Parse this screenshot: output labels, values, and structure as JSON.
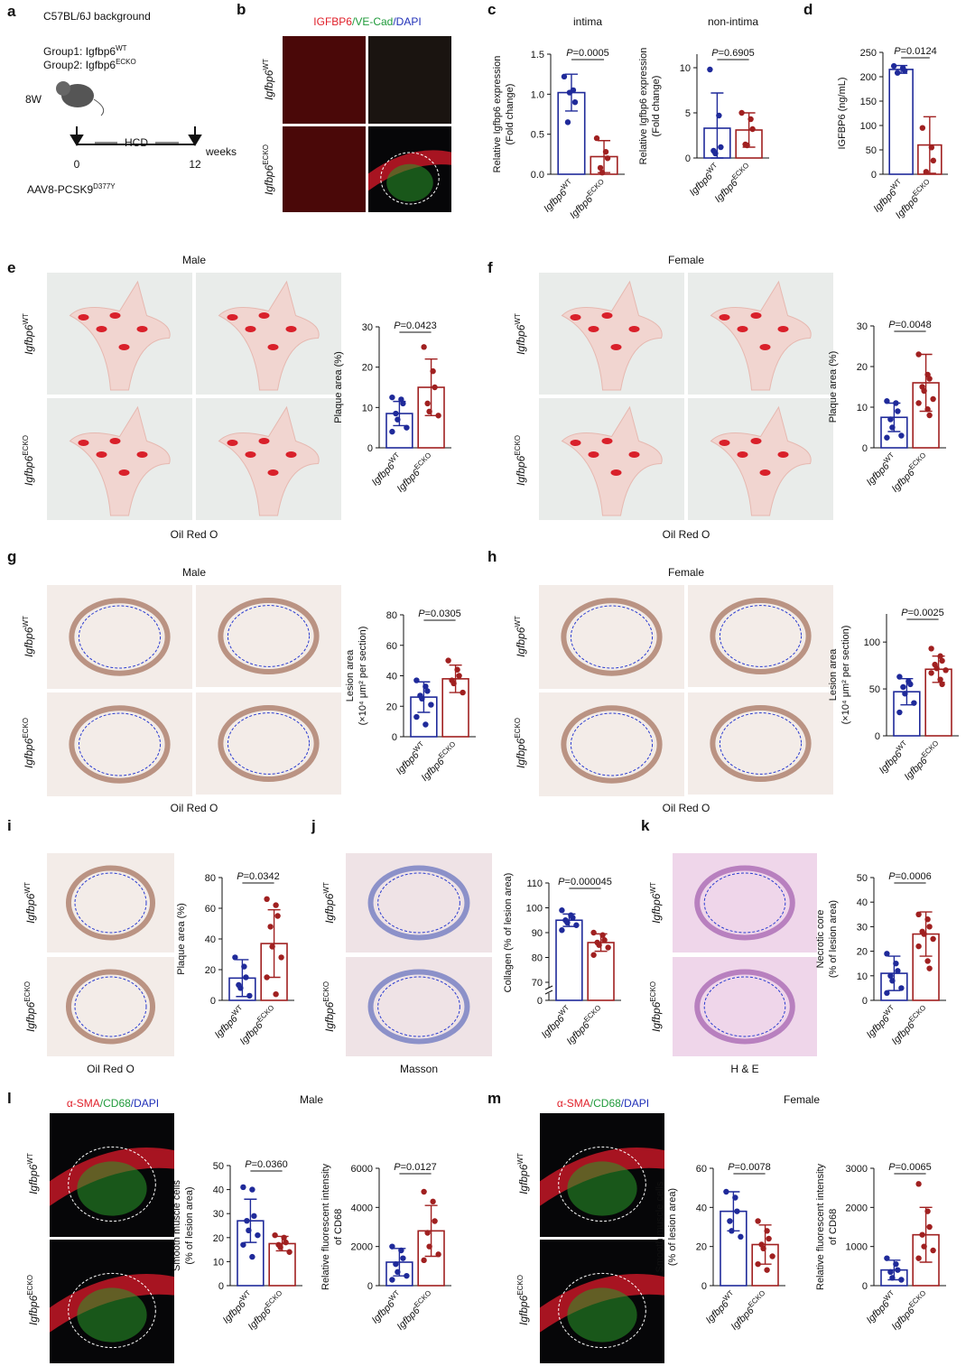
{
  "figure": {
    "panel_letters": [
      "a",
      "b",
      "c",
      "d",
      "e",
      "f",
      "g",
      "h",
      "i",
      "j",
      "k",
      "l",
      "m"
    ],
    "a": {
      "background": "C57BL/6J background",
      "group1": {
        "text": "Group1: Igfbp6",
        "sup": "WT"
      },
      "group2": {
        "text": "Group2: Igfbp6",
        "sup": "ECKO"
      },
      "age": "8W",
      "diet": "HCD",
      "start": "0",
      "end": "12",
      "unit": "weeks",
      "virus": {
        "text": "AAV8-PCSK9",
        "sup": "D377Y"
      }
    },
    "b": {
      "stain": [
        {
          "text": "IGFBP6",
          "color": "#e0202a"
        },
        {
          "text": "/VE-Cad",
          "color": "#1f9a3a"
        },
        {
          "text": "/DAPI",
          "color": "#2030b8"
        }
      ],
      "rows": [
        "Igfbp6WT",
        "Igfbp6ECKO"
      ]
    },
    "e": {
      "title": "Male",
      "rows": [
        "Igfbp6WT",
        "Igfbp6ECKO"
      ],
      "caption": "Oil Red O"
    },
    "f": {
      "title": "Female",
      "rows": [
        "Igfbp6WT",
        "Igfbp6ECKO"
      ],
      "caption": "Oil Red O"
    },
    "g": {
      "title": "Male",
      "rows": [
        "Igfbp6WT",
        "Igfbp6ECKO"
      ],
      "caption": "Oil Red O"
    },
    "h": {
      "title": "Female",
      "rows": [
        "Igfbp6WT",
        "Igfbp6ECKO"
      ],
      "caption": "Oil Red O"
    },
    "i": {
      "rows": [
        "Igfbp6WT",
        "Igfbp6ECKO"
      ],
      "caption": "Oil Red O"
    },
    "j": {
      "rows": [
        "Igfbp6WT",
        "Igfbp6ECKO"
      ],
      "caption": "Masson"
    },
    "k": {
      "rows": [
        "Igfbp6WT",
        "Igfbp6ECKO"
      ],
      "caption": "H & E"
    },
    "l": {
      "title": "Male",
      "stain": [
        {
          "text": "α-SMA",
          "color": "#e0202a"
        },
        {
          "text": "/CD68",
          "color": "#1f9a3a"
        },
        {
          "text": "/DAPI",
          "color": "#2030b8"
        }
      ],
      "rows": [
        "Igfbp6WT",
        "Igfbp6ECKO"
      ]
    },
    "m": {
      "title": "Female",
      "stain": [
        {
          "text": "α-SMA",
          "color": "#e0202a"
        },
        {
          "text": "/CD68",
          "color": "#1f9a3a"
        },
        {
          "text": "/DAPI",
          "color": "#2030b8"
        }
      ],
      "rows": [
        "Igfbp6WT",
        "Igfbp6ECKO"
      ]
    }
  },
  "chart_data": [
    {
      "type": "bar",
      "title": "intima",
      "ylabel": [
        "Relative Igfbp6 expression",
        "(Fold change)"
      ],
      "categories": [
        "Igfbp6WT",
        "Igfbp6ECKO"
      ],
      "colors": [
        "#1f2a9a",
        "#a02020"
      ],
      "values": [
        1.02,
        0.22
      ],
      "errors": [
        0.23,
        0.2
      ],
      "points": [
        [
          1.22,
          1.05,
          0.9,
          0.65,
          1.02
        ],
        [
          0.45,
          0.28,
          0.2,
          0.08,
          0.02
        ]
      ],
      "pvalue": "P=0.0005",
      "ylim": [
        0,
        1.5
      ],
      "yticks": [
        {
          "value": 0,
          "label": "0.0"
        },
        {
          "value": 0.5,
          "label": "0.5"
        },
        {
          "value": 1,
          "label": "1.0"
        },
        {
          "value": 1.5,
          "label": "1.5"
        }
      ]
    },
    {
      "type": "bar",
      "title": "non-intima",
      "ylabel": [
        "Relative Igfbp6 expression",
        "(Fold change)"
      ],
      "categories": [
        "Igfbp6WT",
        "Igfbp6ECKO"
      ],
      "colors": [
        "#1f2a9a",
        "#a02020"
      ],
      "values": [
        3.3,
        3.1
      ],
      "errors": [
        3.9,
        1.9
      ],
      "points": [
        [
          9.8,
          4.7,
          1.2,
          0.8,
          0.5
        ],
        [
          5,
          4.3,
          3.2,
          1.5,
          1.4
        ]
      ],
      "pvalue": "P=0.6905",
      "ylim": [
        0,
        11.5
      ],
      "yticks": [
        0,
        5,
        10
      ]
    },
    {
      "type": "bar",
      "ylabel": [
        "IGFBP6 (ng/mL)"
      ],
      "categories": [
        "Igfbp6WT",
        "Igfbp6ECKO"
      ],
      "colors": [
        "#1f2a9a",
        "#a02020"
      ],
      "values": [
        215,
        60
      ],
      "errors": [
        8,
        58
      ],
      "points": [
        [
          222,
          218,
          212,
          208
        ],
        [
          95,
          55,
          28,
          5
        ]
      ],
      "pvalue": "P=0.0124",
      "ylim": [
        0,
        250
      ],
      "yticks": [
        0,
        50,
        100,
        150,
        200,
        250
      ]
    },
    {
      "type": "bar",
      "ylabel": [
        "Plaque area (%)"
      ],
      "categories": [
        "Igfbp6WT",
        "Igfbp6ECKO"
      ],
      "colors": [
        "#1f2a9a",
        "#a02020"
      ],
      "values": [
        8.5,
        15
      ],
      "errors": [
        3,
        7
      ],
      "points": [
        [
          12.5,
          12,
          11,
          8.5,
          7,
          5,
          4
        ],
        [
          25,
          19,
          15,
          11,
          9,
          8
        ]
      ],
      "pvalue": "P=0.0423",
      "ylim": [
        0,
        30
      ],
      "yticks": [
        0,
        10,
        20,
        30
      ]
    },
    {
      "type": "bar",
      "ylabel": [
        "Plaque area (%)"
      ],
      "categories": [
        "Igfbp6WT",
        "Igfbp6ECKO"
      ],
      "colors": [
        "#1f2a9a",
        "#a02020"
      ],
      "values": [
        7.5,
        16
      ],
      "errors": [
        3.5,
        7
      ],
      "points": [
        [
          11.5,
          11,
          9,
          7,
          5,
          3,
          2.5
        ],
        [
          23,
          18,
          17,
          15,
          14,
          12,
          11,
          9.5,
          8
        ]
      ],
      "pvalue": "P=0.0048",
      "ylim": [
        0,
        30
      ],
      "yticks": [
        0,
        10,
        20,
        30
      ]
    },
    {
      "type": "bar",
      "ylabel": [
        "Lesion area",
        "(×10⁴ μm² per section)"
      ],
      "categories": [
        "Igfbp6WT",
        "Igfbp6ECKO"
      ],
      "colors": [
        "#1f2a9a",
        "#a02020"
      ],
      "values": [
        26,
        38
      ],
      "errors": [
        10,
        9
      ],
      "points": [
        [
          37,
          33,
          30,
          27,
          25,
          21,
          13,
          8
        ],
        [
          50,
          44,
          40,
          37,
          35,
          29
        ]
      ],
      "pvalue": "P=0.0305",
      "ylim": [
        0,
        80
      ],
      "yticks": [
        0,
        20,
        40,
        60,
        80
      ]
    },
    {
      "type": "bar",
      "ylabel": [
        "Lesion area",
        "(×10⁴ μm² per section)"
      ],
      "categories": [
        "Igfbp6WT",
        "Igfbp6ECKO"
      ],
      "colors": [
        "#1f2a9a",
        "#a02020"
      ],
      "values": [
        47,
        71
      ],
      "errors": [
        14,
        14
      ],
      "points": [
        [
          63,
          58,
          55,
          52,
          45,
          35,
          25
        ],
        [
          93,
          85,
          80,
          76,
          72,
          70,
          67,
          60,
          55
        ]
      ],
      "pvalue": "P=0.0025",
      "ylim": [
        0,
        130
      ],
      "yticks": [
        0,
        50,
        100
      ]
    },
    {
      "type": "bar",
      "ylabel": [
        "Plaque area (%)"
      ],
      "categories": [
        "Igfbp6WT",
        "Igfbp6ECKO"
      ],
      "colors": [
        "#1f2a9a",
        "#a02020"
      ],
      "values": [
        14.5,
        37
      ],
      "errors": [
        12,
        22
      ],
      "points": [
        [
          28,
          22,
          15,
          10,
          8,
          3
        ],
        [
          66,
          62,
          55,
          48,
          35,
          28,
          15,
          4
        ]
      ],
      "pvalue": "P=0.0342",
      "ylim": [
        0,
        80
      ],
      "yticks": [
        0,
        20,
        40,
        60,
        80
      ]
    },
    {
      "type": "bar",
      "ylabel": [
        "Collagen (% of lesion area)"
      ],
      "categories": [
        "Igfbp6WT",
        "Igfbp6ECKO"
      ],
      "colors": [
        "#1f2a9a",
        "#a02020"
      ],
      "values": [
        95,
        86
      ],
      "errors": [
        2.5,
        3.5
      ],
      "points": [
        [
          99,
          97,
          96,
          95,
          94,
          93,
          91
        ],
        [
          90,
          89,
          87,
          86,
          85,
          84,
          81
        ]
      ],
      "pvalue": "P=0.000045",
      "ylim": [
        70,
        110
      ],
      "axis_break": true,
      "yticks": [
        0,
        70,
        80,
        90,
        100,
        110
      ]
    },
    {
      "type": "bar",
      "ylabel": [
        "Necrotic core",
        "(% of lesion area)"
      ],
      "categories": [
        "Igfbp6WT",
        "Igfbp6ECKO"
      ],
      "colors": [
        "#1f2a9a",
        "#a02020"
      ],
      "values": [
        11,
        27
      ],
      "errors": [
        7,
        9
      ],
      "points": [
        [
          19,
          15,
          12,
          10,
          8,
          5,
          3
        ],
        [
          35,
          33,
          30,
          28,
          27,
          25,
          22,
          16,
          13
        ]
      ],
      "pvalue": "P=0.0006",
      "ylim": [
        0,
        50
      ],
      "yticks": [
        0,
        10,
        20,
        30,
        40,
        50
      ]
    },
    {
      "type": "bar",
      "ylabel": [
        "Smooth muscle cells",
        "(% of lesion area)"
      ],
      "categories": [
        "Igfbp6WT",
        "Igfbp6ECKO"
      ],
      "colors": [
        "#1f2a9a",
        "#a02020"
      ],
      "values": [
        27,
        17.5
      ],
      "errors": [
        9,
        3
      ],
      "points": [
        [
          41,
          40,
          29,
          27,
          23,
          21,
          17,
          12
        ],
        [
          21,
          20,
          18,
          17,
          16,
          14
        ]
      ],
      "pvalue": "P=0.0360",
      "ylim": [
        0,
        50
      ],
      "yticks": [
        0,
        10,
        20,
        30,
        40,
        50
      ]
    },
    {
      "type": "bar",
      "ylabel": [
        "Relative fluorescent intensity",
        "of CD68"
      ],
      "categories": [
        "Igfbp6WT",
        "Igfbp6ECKO"
      ],
      "colors": [
        "#1f2a9a",
        "#a02020"
      ],
      "values": [
        1200,
        2800
      ],
      "errors": [
        700,
        1300
      ],
      "points": [
        [
          2000,
          1800,
          1400,
          1100,
          700,
          500,
          300
        ],
        [
          4800,
          4300,
          3300,
          2700,
          2000,
          1600,
          1300
        ]
      ],
      "pvalue": "P=0.0127",
      "ylim": [
        0,
        6000
      ],
      "yticks": [
        0,
        2000,
        4000,
        6000
      ]
    },
    {
      "type": "bar",
      "ylabel": [
        "Smooth muscle cells",
        "(% of lesion area)"
      ],
      "categories": [
        "Igfbp6WT",
        "Igfbp6ECKO"
      ],
      "colors": [
        "#1f2a9a",
        "#a02020"
      ],
      "values": [
        38,
        21
      ],
      "errors": [
        10,
        10
      ],
      "points": [
        [
          48,
          45,
          38,
          33,
          28,
          25
        ],
        [
          33,
          28,
          24,
          21,
          19,
          15,
          11,
          8
        ]
      ],
      "pvalue": "P=0.0078",
      "ylim": [
        0,
        60
      ],
      "yticks": [
        0,
        20,
        40,
        60
      ]
    },
    {
      "type": "bar",
      "ylabel": [
        "Relative fluorescent intensity",
        "of CD68"
      ],
      "categories": [
        "Igfbp6WT",
        "Igfbp6ECKO"
      ],
      "colors": [
        "#1f2a9a",
        "#a02020"
      ],
      "values": [
        400,
        1300
      ],
      "errors": [
        250,
        700
      ],
      "points": [
        [
          700,
          550,
          400,
          350,
          200,
          150
        ],
        [
          2600,
          1900,
          1500,
          1300,
          1000,
          900,
          700
        ]
      ],
      "pvalue": "P=0.0065",
      "ylim": [
        0,
        3000
      ],
      "yticks": [
        0,
        1000,
        2000,
        3000
      ]
    }
  ]
}
